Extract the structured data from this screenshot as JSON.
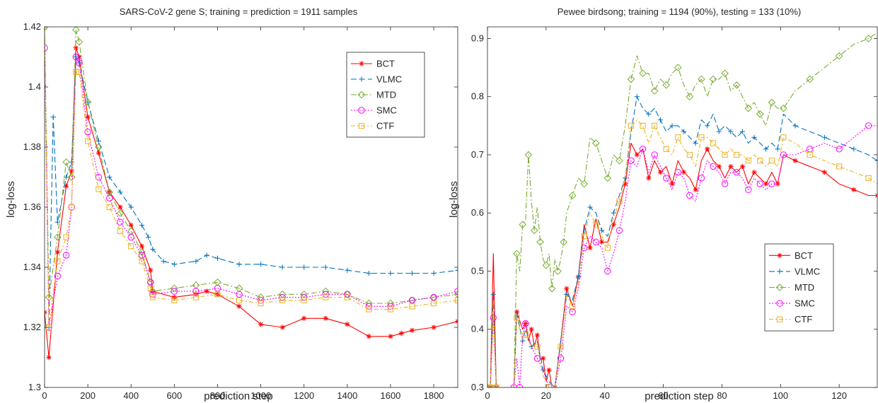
{
  "chart_data": [
    {
      "type": "line",
      "title": "SARS-CoV-2 gene S; training = prediction = 1911 samples",
      "xlabel": "prediction step",
      "ylabel": "log-loss",
      "xlim": [
        0,
        1911
      ],
      "ylim": [
        1.3,
        1.42
      ],
      "xticks": [
        0,
        200,
        400,
        600,
        800,
        1000,
        1200,
        1400,
        1600,
        1800
      ],
      "yticks": [
        1.3,
        1.32,
        1.34,
        1.36,
        1.38,
        1.4,
        1.42
      ],
      "legend_position": "top-right",
      "grid": false,
      "series": [
        {
          "name": "BCT",
          "color": "#ff0000",
          "marker": "asterisk",
          "dash": "",
          "x": [
            0,
            20,
            60,
            100,
            125,
            145,
            160,
            200,
            250,
            300,
            350,
            400,
            450,
            490,
            500,
            600,
            700,
            750,
            800,
            900,
            1000,
            1100,
            1200,
            1300,
            1400,
            1500,
            1600,
            1650,
            1700,
            1800,
            1911
          ],
          "y": [
            1.325,
            1.31,
            1.345,
            1.367,
            1.372,
            1.413,
            1.41,
            1.39,
            1.378,
            1.365,
            1.36,
            1.354,
            1.347,
            1.339,
            1.332,
            1.33,
            1.331,
            1.332,
            1.331,
            1.327,
            1.321,
            1.32,
            1.323,
            1.323,
            1.321,
            1.317,
            1.317,
            1.318,
            1.319,
            1.32,
            1.322
          ]
        },
        {
          "name": "VLMC",
          "color": "#0072bd",
          "marker": "plus",
          "dash": "8,4",
          "x": [
            0,
            20,
            40,
            60,
            100,
            125,
            145,
            160,
            200,
            250,
            300,
            350,
            400,
            450,
            480,
            500,
            550,
            600,
            700,
            750,
            800,
            900,
            1000,
            1100,
            1200,
            1300,
            1400,
            1500,
            1600,
            1700,
            1800,
            1911
          ],
          "y": [
            1.32,
            1.32,
            1.39,
            1.355,
            1.37,
            1.375,
            1.41,
            1.408,
            1.395,
            1.382,
            1.37,
            1.365,
            1.36,
            1.354,
            1.35,
            1.346,
            1.342,
            1.341,
            1.342,
            1.344,
            1.343,
            1.341,
            1.341,
            1.34,
            1.34,
            1.34,
            1.339,
            1.338,
            1.338,
            1.338,
            1.338,
            1.339
          ]
        },
        {
          "name": "MTD",
          "color": "#77ac30",
          "marker": "diamond",
          "dash": "8,3,2,3",
          "x": [
            0,
            20,
            60,
            100,
            125,
            145,
            160,
            200,
            250,
            300,
            350,
            400,
            450,
            490,
            500,
            600,
            700,
            800,
            900,
            1000,
            1100,
            1200,
            1300,
            1400,
            1500,
            1600,
            1700,
            1800,
            1911
          ],
          "y": [
            1.42,
            1.33,
            1.35,
            1.375,
            1.37,
            1.419,
            1.415,
            1.395,
            1.38,
            1.365,
            1.358,
            1.352,
            1.345,
            1.335,
            1.332,
            1.333,
            1.334,
            1.335,
            1.333,
            1.33,
            1.331,
            1.331,
            1.332,
            1.331,
            1.328,
            1.328,
            1.329,
            1.33,
            1.331
          ]
        },
        {
          "name": "SMC",
          "color": "#ff00ff",
          "marker": "circle",
          "dash": "2,2",
          "x": [
            0,
            20,
            60,
            100,
            125,
            145,
            160,
            200,
            250,
            300,
            350,
            400,
            450,
            490,
            500,
            600,
            700,
            800,
            900,
            1000,
            1100,
            1200,
            1300,
            1400,
            1500,
            1600,
            1700,
            1800,
            1911
          ],
          "y": [
            1.413,
            1.32,
            1.337,
            1.344,
            1.36,
            1.41,
            1.408,
            1.385,
            1.37,
            1.363,
            1.355,
            1.35,
            1.344,
            1.335,
            1.331,
            1.332,
            1.332,
            1.333,
            1.331,
            1.329,
            1.33,
            1.33,
            1.331,
            1.331,
            1.327,
            1.327,
            1.329,
            1.33,
            1.332
          ]
        },
        {
          "name": "CTF",
          "color": "#edb120",
          "marker": "square",
          "dash": "6,3,2,3",
          "x": [
            0,
            20,
            60,
            100,
            125,
            145,
            160,
            200,
            250,
            300,
            350,
            400,
            450,
            490,
            500,
            600,
            700,
            800,
            900,
            1000,
            1100,
            1200,
            1300,
            1400,
            1500,
            1600,
            1700,
            1800,
            1911
          ],
          "y": [
            1.42,
            1.32,
            1.342,
            1.35,
            1.36,
            1.405,
            1.405,
            1.382,
            1.366,
            1.36,
            1.352,
            1.347,
            1.342,
            1.333,
            1.33,
            1.329,
            1.33,
            1.331,
            1.329,
            1.328,
            1.329,
            1.329,
            1.33,
            1.33,
            1.326,
            1.326,
            1.327,
            1.328,
            1.329
          ]
        }
      ]
    },
    {
      "type": "line",
      "title": "Pewee birdsong; training = 1194 (90%), testing = 133 (10%)",
      "xlabel": "prediction step",
      "ylabel": "log-loss",
      "xlim": [
        0,
        133
      ],
      "ylim": [
        0.3,
        0.92
      ],
      "xticks": [
        0,
        20,
        40,
        60,
        80,
        100,
        120
      ],
      "yticks": [
        0.3,
        0.4,
        0.5,
        0.6,
        0.7,
        0.8,
        0.9
      ],
      "legend_position": "bottom-right",
      "grid": false,
      "series": [
        {
          "name": "BCT",
          "color": "#ff0000",
          "marker": "asterisk",
          "dash": "",
          "x": [
            1,
            2,
            3,
            9,
            10,
            12,
            13,
            14,
            15,
            16,
            17,
            18,
            19,
            20,
            21,
            22,
            23,
            25,
            27,
            29,
            31,
            33,
            35,
            37,
            39,
            41,
            43,
            45,
            47,
            49,
            51,
            53,
            55,
            57,
            59,
            61,
            63,
            65,
            67,
            69,
            71,
            73,
            75,
            77,
            79,
            81,
            83,
            85,
            87,
            89,
            91,
            93,
            95,
            97,
            99,
            101,
            105,
            110,
            115,
            120,
            125,
            130,
            133
          ],
          "y": [
            0.3,
            0.53,
            0.3,
            0.3,
            0.43,
            0.4,
            0.41,
            0.38,
            0.4,
            0.37,
            0.39,
            0.35,
            0.35,
            0.31,
            0.33,
            0.3,
            0.3,
            0.38,
            0.47,
            0.44,
            0.49,
            0.58,
            0.54,
            0.59,
            0.55,
            0.55,
            0.58,
            0.61,
            0.65,
            0.72,
            0.7,
            0.71,
            0.66,
            0.69,
            0.67,
            0.68,
            0.65,
            0.69,
            0.67,
            0.66,
            0.64,
            0.69,
            0.71,
            0.69,
            0.68,
            0.66,
            0.68,
            0.67,
            0.68,
            0.65,
            0.67,
            0.66,
            0.65,
            0.67,
            0.65,
            0.7,
            0.69,
            0.68,
            0.67,
            0.65,
            0.64,
            0.63,
            0.63
          ]
        },
        {
          "name": "VLMC",
          "color": "#0072bd",
          "marker": "plus",
          "dash": "8,4",
          "x": [
            1,
            2,
            3,
            9,
            10,
            12,
            13,
            15,
            17,
            19,
            21,
            23,
            25,
            27,
            29,
            31,
            33,
            35,
            37,
            39,
            41,
            43,
            45,
            47,
            49,
            51,
            53,
            55,
            57,
            59,
            61,
            63,
            65,
            67,
            69,
            71,
            73,
            75,
            77,
            79,
            81,
            83,
            85,
            87,
            89,
            91,
            93,
            95,
            97,
            99,
            101,
            105,
            110,
            115,
            120,
            125,
            130,
            133
          ],
          "y": [
            0.3,
            0.46,
            0.3,
            0.3,
            0.43,
            0.38,
            0.4,
            0.37,
            0.38,
            0.33,
            0.31,
            0.3,
            0.38,
            0.46,
            0.45,
            0.49,
            0.57,
            0.61,
            0.6,
            0.57,
            0.56,
            0.6,
            0.63,
            0.66,
            0.74,
            0.8,
            0.78,
            0.77,
            0.78,
            0.76,
            0.74,
            0.75,
            0.75,
            0.74,
            0.73,
            0.72,
            0.76,
            0.75,
            0.77,
            0.74,
            0.75,
            0.74,
            0.73,
            0.74,
            0.72,
            0.73,
            0.72,
            0.71,
            0.72,
            0.71,
            0.77,
            0.75,
            0.74,
            0.73,
            0.72,
            0.71,
            0.7,
            0.69
          ]
        },
        {
          "name": "MTD",
          "color": "#77ac30",
          "marker": "diamond",
          "dash": "8,3,2,3",
          "x": [
            1,
            2,
            3,
            9,
            10,
            11,
            12,
            13,
            14,
            15,
            16,
            17,
            18,
            19,
            20,
            21,
            22,
            23,
            24,
            25,
            26,
            27,
            29,
            31,
            33,
            35,
            37,
            39,
            41,
            43,
            45,
            47,
            49,
            51,
            53,
            55,
            57,
            59,
            61,
            63,
            65,
            67,
            69,
            71,
            73,
            75,
            77,
            79,
            81,
            83,
            85,
            87,
            89,
            91,
            93,
            95,
            97,
            99,
            101,
            105,
            110,
            115,
            120,
            125,
            130,
            133
          ],
          "y": [
            0.3,
            0.45,
            0.3,
            0.3,
            0.53,
            0.5,
            0.58,
            0.59,
            0.7,
            0.62,
            0.57,
            0.61,
            0.55,
            0.52,
            0.51,
            0.53,
            0.47,
            0.52,
            0.5,
            0.52,
            0.55,
            0.6,
            0.63,
            0.66,
            0.65,
            0.73,
            0.72,
            0.69,
            0.66,
            0.7,
            0.69,
            0.75,
            0.83,
            0.87,
            0.84,
            0.84,
            0.81,
            0.83,
            0.82,
            0.84,
            0.85,
            0.82,
            0.8,
            0.82,
            0.83,
            0.8,
            0.83,
            0.83,
            0.84,
            0.81,
            0.82,
            0.8,
            0.78,
            0.79,
            0.77,
            0.75,
            0.79,
            0.78,
            0.78,
            0.81,
            0.83,
            0.85,
            0.87,
            0.89,
            0.9,
            0.91
          ]
        },
        {
          "name": "SMC",
          "color": "#ff00ff",
          "marker": "circle",
          "dash": "2,2",
          "x": [
            1,
            2,
            3,
            9,
            10,
            11,
            12,
            13,
            15,
            17,
            19,
            21,
            23,
            25,
            27,
            29,
            31,
            33,
            35,
            37,
            39,
            41,
            43,
            45,
            47,
            49,
            51,
            53,
            55,
            57,
            59,
            61,
            63,
            65,
            67,
            69,
            71,
            73,
            75,
            77,
            79,
            81,
            83,
            85,
            87,
            89,
            91,
            93,
            95,
            97,
            99,
            101,
            105,
            110,
            115,
            120,
            125,
            130,
            133
          ],
          "y": [
            0.3,
            0.42,
            0.3,
            0.3,
            0.35,
            0.3,
            0.39,
            0.41,
            0.37,
            0.35,
            0.33,
            0.3,
            0.3,
            0.35,
            0.44,
            0.43,
            0.47,
            0.54,
            0.56,
            0.55,
            0.54,
            0.5,
            0.53,
            0.57,
            0.62,
            0.69,
            0.68,
            0.71,
            0.67,
            0.7,
            0.68,
            0.66,
            0.64,
            0.67,
            0.66,
            0.63,
            0.62,
            0.66,
            0.69,
            0.68,
            0.67,
            0.65,
            0.67,
            0.67,
            0.66,
            0.64,
            0.66,
            0.65,
            0.64,
            0.65,
            0.65,
            0.7,
            0.7,
            0.71,
            0.72,
            0.71,
            0.73,
            0.75,
            0.75
          ]
        },
        {
          "name": "CTF",
          "color": "#edb120",
          "marker": "square",
          "dash": "6,3,2,3",
          "x": [
            1,
            2,
            3,
            9,
            10,
            12,
            13,
            15,
            17,
            19,
            21,
            23,
            25,
            27,
            29,
            31,
            33,
            35,
            37,
            39,
            41,
            43,
            45,
            47,
            49,
            51,
            53,
            55,
            57,
            59,
            61,
            63,
            65,
            67,
            69,
            71,
            73,
            75,
            77,
            79,
            81,
            83,
            85,
            87,
            89,
            91,
            93,
            95,
            97,
            99,
            101,
            105,
            110,
            115,
            120,
            125,
            130,
            133
          ],
          "y": [
            0.3,
            0.43,
            0.3,
            0.3,
            0.42,
            0.38,
            0.39,
            0.37,
            0.37,
            0.32,
            0.3,
            0.3,
            0.37,
            0.46,
            0.44,
            0.48,
            0.56,
            0.6,
            0.58,
            0.56,
            0.54,
            0.59,
            0.62,
            0.66,
            0.75,
            0.76,
            0.75,
            0.72,
            0.75,
            0.73,
            0.71,
            0.7,
            0.73,
            0.71,
            0.7,
            0.68,
            0.73,
            0.73,
            0.72,
            0.71,
            0.7,
            0.71,
            0.7,
            0.7,
            0.69,
            0.7,
            0.69,
            0.68,
            0.69,
            0.68,
            0.73,
            0.72,
            0.7,
            0.69,
            0.68,
            0.67,
            0.66,
            0.65
          ]
        }
      ]
    }
  ]
}
